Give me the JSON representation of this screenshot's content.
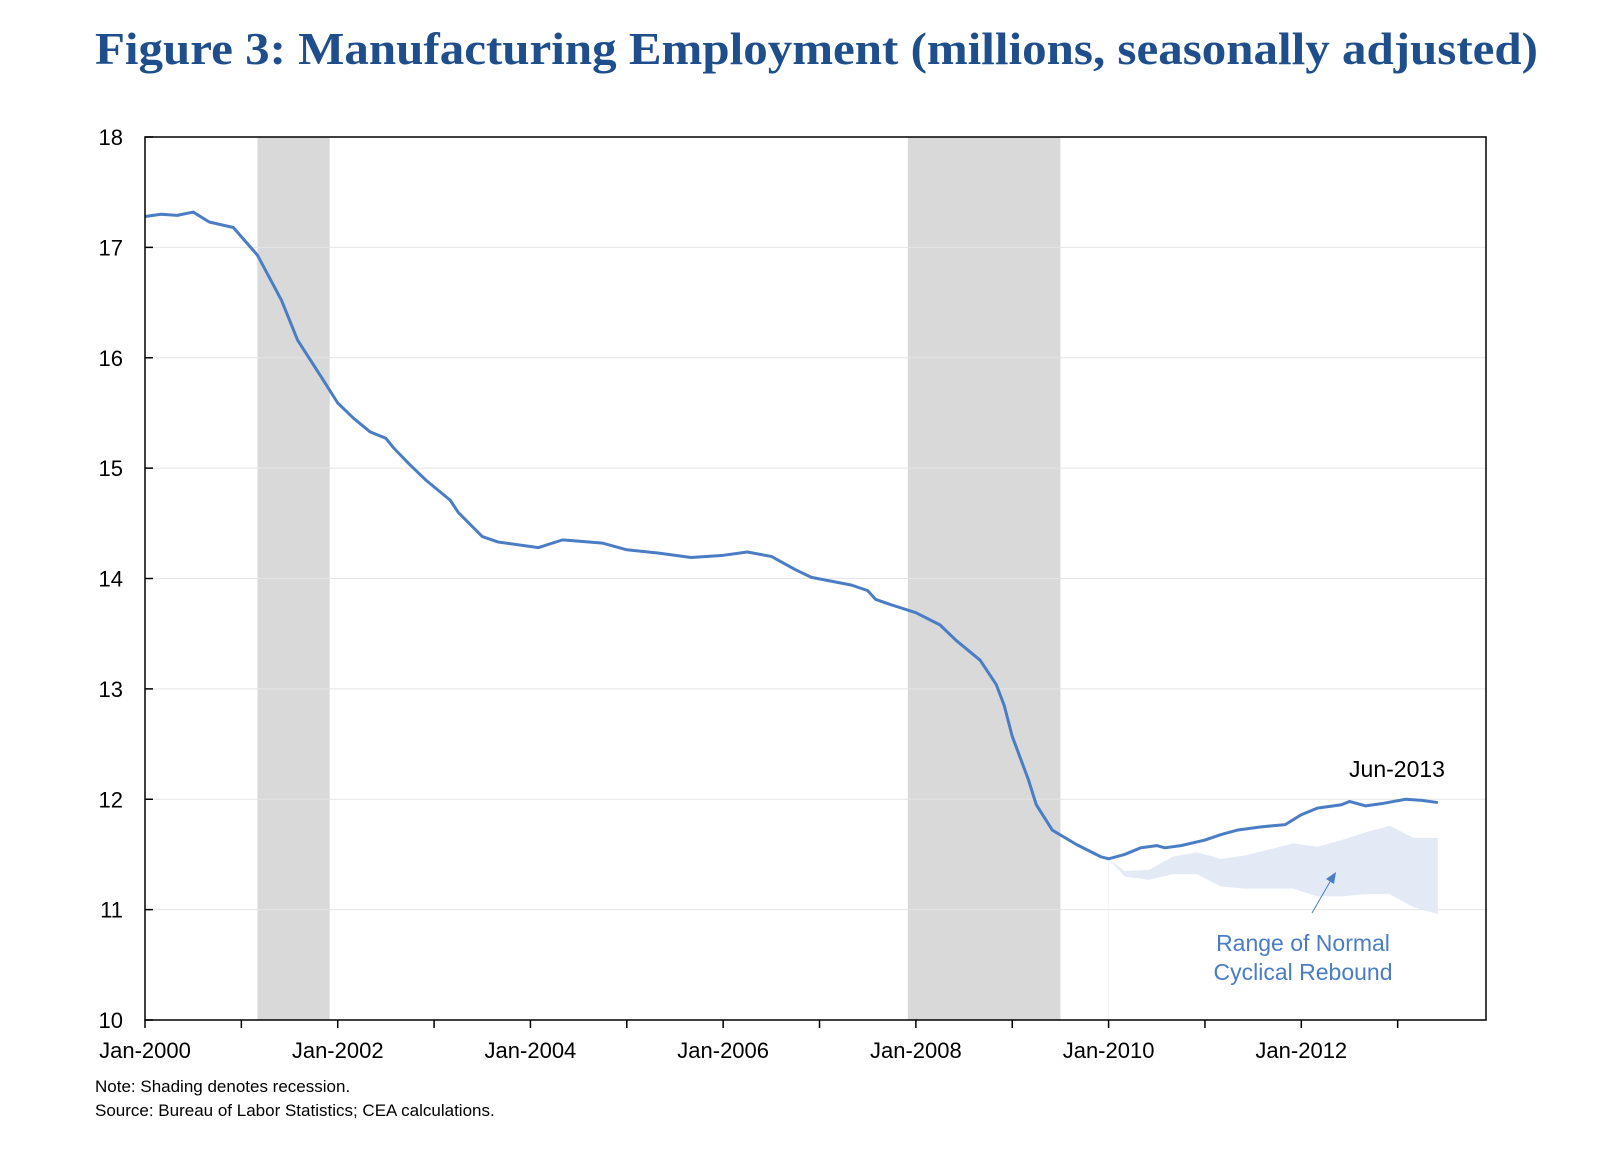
{
  "chart_data": {
    "type": "line",
    "title": "Figure 3: Manufacturing Employment (millions, seasonally adjusted)",
    "xlabel": "",
    "ylabel": "",
    "ylim": [
      10,
      18
    ],
    "yticks": [
      "10",
      "11",
      "12",
      "13",
      "14",
      "15",
      "16",
      "17",
      "18"
    ],
    "xlim_months_since_jan2000": [
      0,
      167
    ],
    "xtick_labels": [
      "Jan-2000",
      "Jan-2002",
      "Jan-2004",
      "Jan-2006",
      "Jan-2008",
      "Jan-2010",
      "Jan-2012"
    ],
    "grid": "horizontal",
    "colors": {
      "title": "#1f4e8c",
      "line": "#4a7dc4",
      "band": "#e3eaf5",
      "recession": "#d9d9d9",
      "annotation": "#4a7dc4"
    },
    "recessions": [
      {
        "start_month": 14,
        "end_month": 23
      },
      {
        "start_month": 95,
        "end_month": 114
      }
    ],
    "series": [
      {
        "name": "Manufacturing Employment",
        "x_month": [
          0,
          2,
          4,
          6,
          8,
          11,
          14,
          17,
          19,
          22,
          24,
          26,
          28,
          30,
          31,
          33,
          35,
          38,
          39,
          42,
          44,
          49,
          52,
          57,
          60,
          64,
          68,
          72,
          75,
          78,
          81,
          83,
          88,
          90,
          91,
          93,
          96,
          99,
          101,
          104,
          106,
          107,
          108,
          110,
          111,
          113,
          116,
          119,
          120,
          122,
          124,
          126,
          127,
          129,
          132,
          134,
          136,
          139,
          142,
          144,
          146,
          149,
          150,
          152,
          154,
          157,
          159,
          161
        ],
        "values": [
          17.28,
          17.3,
          17.29,
          17.32,
          17.23,
          17.18,
          16.93,
          16.52,
          16.16,
          15.82,
          15.59,
          15.45,
          15.33,
          15.27,
          15.18,
          15.03,
          14.89,
          14.71,
          14.6,
          14.38,
          14.33,
          14.28,
          14.35,
          14.32,
          14.26,
          14.23,
          14.19,
          14.21,
          14.24,
          14.2,
          14.08,
          14.01,
          13.94,
          13.89,
          13.81,
          13.76,
          13.69,
          13.58,
          13.44,
          13.26,
          13.04,
          12.85,
          12.57,
          12.18,
          11.95,
          11.72,
          11.59,
          11.48,
          11.46,
          11.5,
          11.56,
          11.58,
          11.56,
          11.58,
          11.63,
          11.68,
          11.72,
          11.75,
          11.77,
          11.86,
          11.92,
          11.95,
          11.98,
          11.94,
          11.96,
          12.0,
          11.99,
          11.97
        ]
      }
    ],
    "band": {
      "name": "Range of Normal Cyclical Rebound",
      "x_month": [
        120,
        122,
        125,
        128,
        131,
        134,
        137,
        143,
        146,
        149,
        152,
        155,
        158,
        161
      ],
      "upper": [
        11.46,
        11.35,
        11.36,
        11.48,
        11.52,
        11.46,
        11.49,
        11.6,
        11.57,
        11.63,
        11.7,
        11.76,
        11.65,
        11.65
      ],
      "lower": [
        11.46,
        11.3,
        11.27,
        11.32,
        11.32,
        11.21,
        11.19,
        11.19,
        11.12,
        11.12,
        11.14,
        11.14,
        11.02,
        10.96
      ]
    },
    "annotations": {
      "end_label": "Jun-2013",
      "band_label_line1": "Range of Normal",
      "band_label_line2": "Cyclical Rebound"
    },
    "notes": [
      "Note: Shading denotes recession.",
      "Source: Bureau of Labor Statistics; CEA calculations."
    ]
  }
}
